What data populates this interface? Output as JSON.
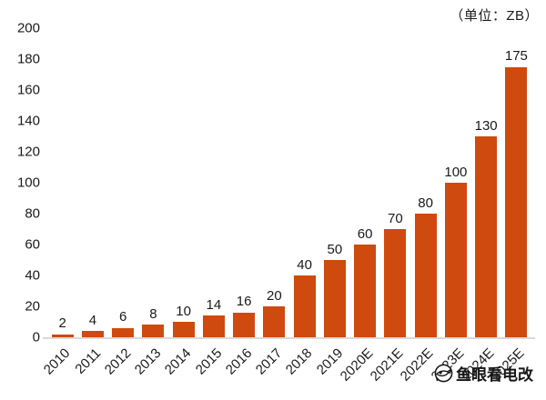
{
  "unit_label": "（单位：ZB）",
  "watermark": {
    "text": "鱼眼看电改"
  },
  "chart_data": {
    "type": "bar",
    "title": "",
    "xlabel": "",
    "ylabel": "",
    "unit_label": "（单位：ZB）",
    "categories": [
      "2010",
      "2011",
      "2012",
      "2013",
      "2014",
      "2015",
      "2016",
      "2017",
      "2018",
      "2019",
      "2020E",
      "2021E",
      "2022E",
      "2023E",
      "2024E",
      "2025E"
    ],
    "values": [
      2,
      4,
      6,
      8,
      10,
      14,
      16,
      20,
      40,
      50,
      60,
      70,
      80,
      100,
      130,
      175
    ],
    "ylim": [
      0,
      200
    ],
    "yticks": [
      0,
      20,
      40,
      60,
      80,
      100,
      120,
      140,
      160,
      180,
      200
    ],
    "bar_color": "#CF4A0E",
    "axis_line_color": "#d9d9d9",
    "grid": false,
    "legend": false,
    "value_labels": true,
    "x_tick_rotation": 45
  }
}
